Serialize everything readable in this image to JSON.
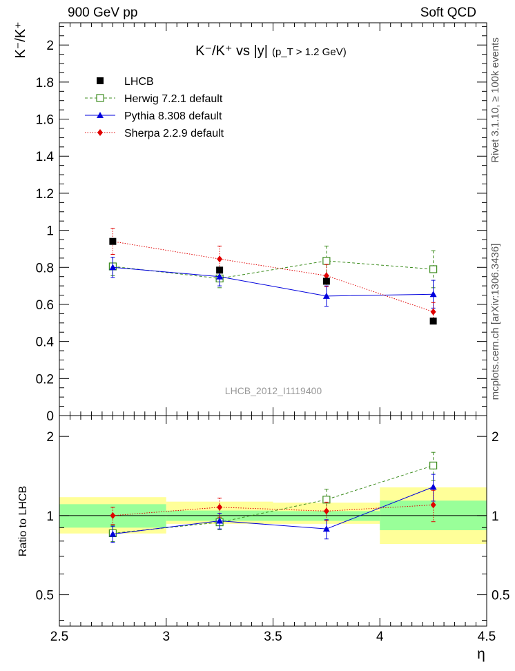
{
  "header": {
    "left": "900 GeV pp",
    "right": "Soft QCD"
  },
  "side_labels": {
    "rivet": "Rivet 3.1.10, ≥ 100k events",
    "mcplots": "mcplots.cern.ch [arXiv:1306.3436]"
  },
  "chart_data": [
    {
      "type": "line",
      "panel": "main",
      "title": "K⁻/K⁺ vs |y| (p_T > 1.2 GeV)",
      "title_main": "K⁻/K⁺ vs |y|",
      "title_sub": "(p_T > 1.2 GeV)",
      "ylabel": "K⁻/K⁺",
      "xlim": [
        2.5,
        4.5
      ],
      "ylim": [
        0,
        2.12
      ],
      "yticks": [
        0,
        0.2,
        0.4,
        0.6,
        0.8,
        1,
        1.2,
        1.4,
        1.6,
        1.8,
        2
      ],
      "watermark": "LHCB_2012_I1119400",
      "legend_position": "top-left",
      "x": [
        2.75,
        3.25,
        3.75,
        4.25
      ],
      "series": [
        {
          "name": "LHCB",
          "color": "#000000",
          "values": [
            0.94,
            0.785,
            0.725,
            0.51
          ],
          "err": [
            0.0,
            0.0,
            0.0,
            0.0
          ],
          "style": "data"
        },
        {
          "name": "Herwig 7.2.1 default",
          "color": "#3c8c1e",
          "values": [
            0.805,
            0.74,
            0.835,
            0.79
          ],
          "err": [
            0.05,
            0.05,
            0.08,
            0.1
          ],
          "style": "open-square"
        },
        {
          "name": "Pythia 8.308 default",
          "color": "#0000dd",
          "values": [
            0.8,
            0.75,
            0.645,
            0.655
          ],
          "err": [
            0.055,
            0.05,
            0.055,
            0.075
          ],
          "style": "triangle"
        },
        {
          "name": "Sherpa 2.2.9 default",
          "color": "#e00000",
          "values": [
            0.94,
            0.845,
            0.755,
            0.56
          ],
          "err": [
            0.07,
            0.07,
            0.06,
            0.05
          ],
          "style": "diamond"
        }
      ]
    },
    {
      "type": "line",
      "panel": "ratio",
      "ylabel": "Ratio to LHCB",
      "xlabel": "η",
      "xlim": [
        2.5,
        4.5
      ],
      "yscale": "log",
      "ylim": [
        0.38,
        2.4
      ],
      "yticks": [
        0.5,
        1,
        2
      ],
      "xticks": [
        2.5,
        3,
        3.5,
        4,
        4.5
      ],
      "x": [
        2.75,
        3.25,
        3.75,
        4.25
      ],
      "bins": [
        [
          2.5,
          3.0
        ],
        [
          3.0,
          3.5
        ],
        [
          3.5,
          4.0
        ],
        [
          4.0,
          4.5
        ]
      ],
      "band_inner": [
        [
          0.9,
          1.105
        ],
        [
          0.955,
          1.045
        ],
        [
          0.955,
          1.04
        ],
        [
          0.88,
          1.14
        ]
      ],
      "band_outer": [
        [
          0.855,
          1.175
        ],
        [
          0.93,
          1.13
        ],
        [
          0.93,
          1.12
        ],
        [
          0.78,
          1.28
        ]
      ],
      "series": [
        {
          "name": "Herwig 7.2.1 default",
          "color": "#3c8c1e",
          "values": [
            0.857,
            0.943,
            1.15,
            1.55
          ],
          "err": [
            0.06,
            0.06,
            0.11,
            0.19
          ],
          "style": "open-square"
        },
        {
          "name": "Pythia 8.308 default",
          "color": "#0000dd",
          "values": [
            0.851,
            0.955,
            0.89,
            1.285
          ],
          "err": [
            0.06,
            0.065,
            0.075,
            0.15
          ],
          "style": "triangle"
        },
        {
          "name": "Sherpa 2.2.9 default",
          "color": "#e00000",
          "values": [
            1.0,
            1.076,
            1.04,
            1.098
          ],
          "err": [
            0.075,
            0.09,
            0.085,
            0.15
          ],
          "style": "diamond"
        }
      ]
    }
  ]
}
